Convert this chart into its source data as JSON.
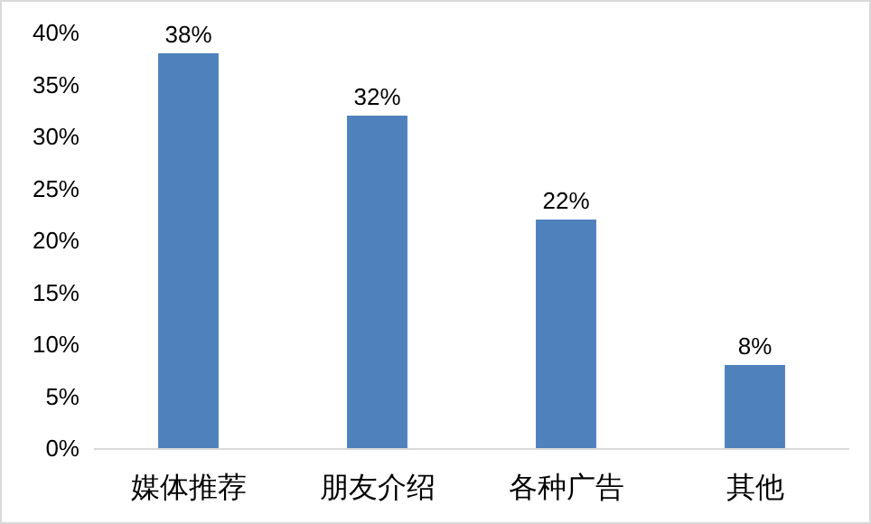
{
  "chart_data": {
    "type": "bar",
    "categories": [
      "媒体推荐",
      "朋友介绍",
      "各种广告",
      "其他"
    ],
    "values": [
      38,
      32,
      22,
      8
    ],
    "value_labels": [
      "38%",
      "32%",
      "22%",
      "8%"
    ],
    "color": "#4f81bd",
    "ylim": [
      0,
      40
    ],
    "yticks": [
      {
        "value": 0,
        "label": "0%"
      },
      {
        "value": 5,
        "label": "5%"
      },
      {
        "value": 10,
        "label": "10%"
      },
      {
        "value": 15,
        "label": "15%"
      },
      {
        "value": 20,
        "label": "20%"
      },
      {
        "value": 25,
        "label": "25%"
      },
      {
        "value": 30,
        "label": "30%"
      },
      {
        "value": 35,
        "label": "35%"
      },
      {
        "value": 40,
        "label": "40%"
      }
    ],
    "grid": false
  }
}
